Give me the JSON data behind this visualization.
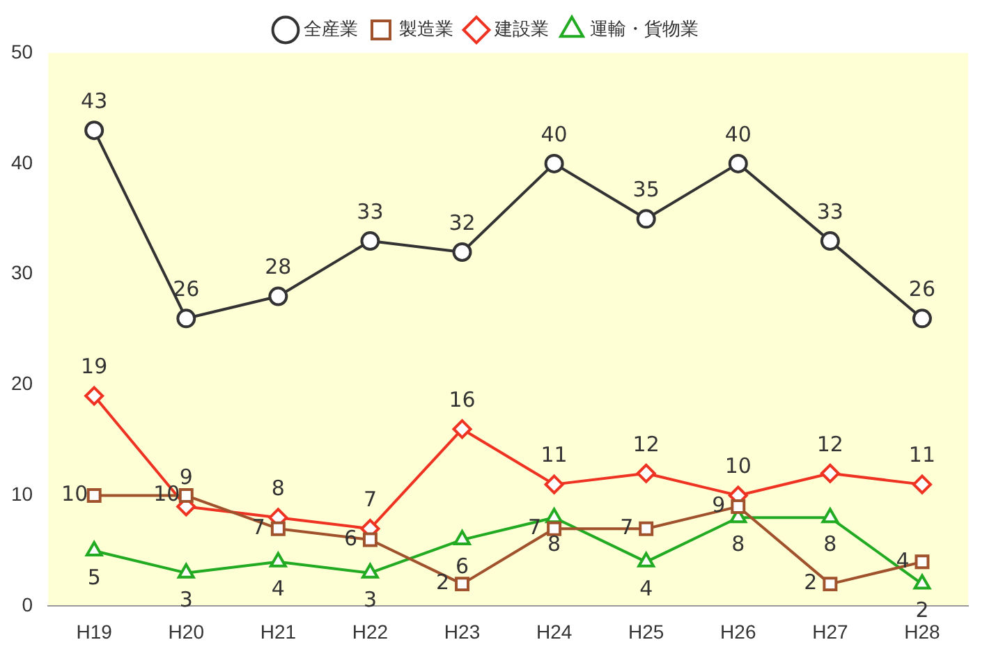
{
  "chart_data": {
    "type": "line",
    "categories": [
      "H19",
      "H20",
      "H21",
      "H22",
      "H23",
      "H24",
      "H25",
      "H26",
      "H27",
      "H28"
    ],
    "series": [
      {
        "name": "全産業",
        "color": "#333333",
        "marker": "circle",
        "values": [
          43,
          26,
          28,
          33,
          32,
          40,
          35,
          40,
          33,
          26
        ]
      },
      {
        "name": "製造業",
        "color": "#a0522d",
        "marker": "square",
        "values": [
          10,
          10,
          7,
          6,
          2,
          7,
          7,
          9,
          2,
          4
        ]
      },
      {
        "name": "建設業",
        "color": "#ee3322",
        "marker": "diamond",
        "values": [
          19,
          9,
          8,
          7,
          16,
          11,
          12,
          10,
          12,
          11
        ]
      },
      {
        "name": "運輸・貨物業",
        "color": "#22aa22",
        "marker": "triangle",
        "values": [
          5,
          3,
          4,
          3,
          6,
          8,
          4,
          8,
          8,
          2
        ]
      }
    ],
    "ylim": [
      0,
      50
    ],
    "yticks": [
      0,
      10,
      20,
      30,
      40,
      50
    ],
    "grid": false,
    "legend": "top",
    "data_labels": true
  }
}
